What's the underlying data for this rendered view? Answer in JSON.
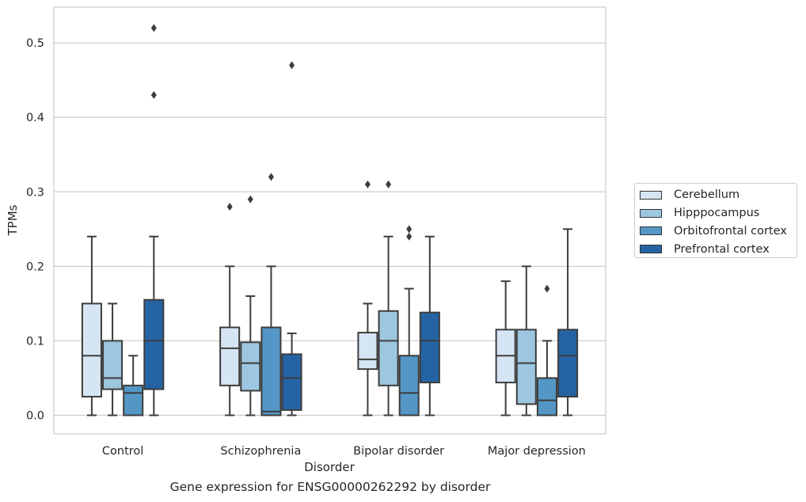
{
  "caption": "Gene expression for ENSG00000262292 by disorder",
  "chart_data": {
    "type": "box",
    "xlabel": "Disorder",
    "ylabel": "TPMs",
    "ylim": [
      -0.025,
      0.548
    ],
    "yticks": [
      0.0,
      0.1,
      0.2,
      0.3,
      0.4,
      0.5
    ],
    "ytick_labels": [
      "0.0",
      "0.1",
      "0.2",
      "0.3",
      "0.4",
      "0.5"
    ],
    "grid": "horizontal",
    "legend_position": "right",
    "categories": [
      "Control",
      "Schizophrenia",
      "Bipolar disorder",
      "Major depression"
    ],
    "series": [
      {
        "name": "Cerebellum",
        "color": "#d6e5f4",
        "boxes": [
          {
            "whisker_low": 0.0,
            "q1": 0.025,
            "median": 0.08,
            "q3": 0.15,
            "whisker_high": 0.24,
            "outliers": []
          },
          {
            "whisker_low": 0.0,
            "q1": 0.04,
            "median": 0.09,
            "q3": 0.118,
            "whisker_high": 0.2,
            "outliers": [
              0.28
            ]
          },
          {
            "whisker_low": 0.0,
            "q1": 0.062,
            "median": 0.075,
            "q3": 0.111,
            "whisker_high": 0.15,
            "outliers": [
              0.31
            ]
          },
          {
            "whisker_low": 0.0,
            "q1": 0.044,
            "median": 0.08,
            "q3": 0.115,
            "whisker_high": 0.18,
            "outliers": []
          }
        ]
      },
      {
        "name": "Hipppocampus",
        "color": "#9dc7e0",
        "boxes": [
          {
            "whisker_low": 0.0,
            "q1": 0.035,
            "median": 0.05,
            "q3": 0.1,
            "whisker_high": 0.15,
            "outliers": []
          },
          {
            "whisker_low": 0.0,
            "q1": 0.033,
            "median": 0.07,
            "q3": 0.098,
            "whisker_high": 0.16,
            "outliers": [
              0.29
            ]
          },
          {
            "whisker_low": 0.0,
            "q1": 0.04,
            "median": 0.1,
            "q3": 0.14,
            "whisker_high": 0.24,
            "outliers": [
              0.31
            ]
          },
          {
            "whisker_low": 0.0,
            "q1": 0.015,
            "median": 0.07,
            "q3": 0.115,
            "whisker_high": 0.2,
            "outliers": []
          }
        ]
      },
      {
        "name": "Orbitofrontal cortex",
        "color": "#5497c6",
        "boxes": [
          {
            "whisker_low": 0.0,
            "q1": 0.0,
            "median": 0.03,
            "q3": 0.04,
            "whisker_high": 0.08,
            "outliers": []
          },
          {
            "whisker_low": 0.0,
            "q1": 0.0,
            "median": 0.005,
            "q3": 0.118,
            "whisker_high": 0.2,
            "outliers": [
              0.32
            ]
          },
          {
            "whisker_low": 0.0,
            "q1": 0.0,
            "median": 0.03,
            "q3": 0.08,
            "whisker_high": 0.17,
            "outliers": [
              0.24,
              0.25
            ]
          },
          {
            "whisker_low": 0.0,
            "q1": 0.0,
            "median": 0.02,
            "q3": 0.05,
            "whisker_high": 0.1,
            "outliers": [
              0.17
            ]
          }
        ]
      },
      {
        "name": "Prefrontal cortex",
        "color": "#2564a4",
        "boxes": [
          {
            "whisker_low": 0.0,
            "q1": 0.035,
            "median": 0.1,
            "q3": 0.155,
            "whisker_high": 0.24,
            "outliers": [
              0.43,
              0.52
            ]
          },
          {
            "whisker_low": 0.0,
            "q1": 0.007,
            "median": 0.05,
            "q3": 0.082,
            "whisker_high": 0.11,
            "outliers": [
              0.47
            ]
          },
          {
            "whisker_low": 0.0,
            "q1": 0.044,
            "median": 0.1,
            "q3": 0.138,
            "whisker_high": 0.24,
            "outliers": []
          },
          {
            "whisker_low": 0.0,
            "q1": 0.025,
            "median": 0.08,
            "q3": 0.115,
            "whisker_high": 0.25,
            "outliers": []
          }
        ]
      }
    ]
  }
}
